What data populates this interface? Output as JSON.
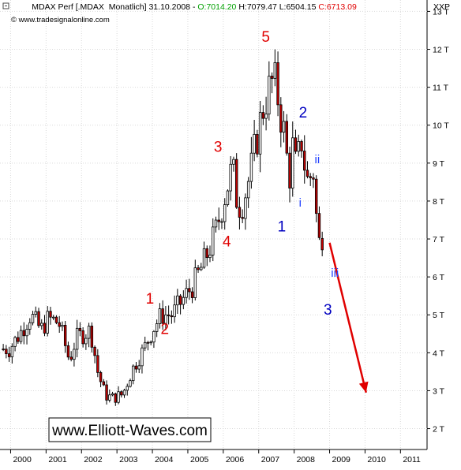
{
  "header": {
    "symbol_text": "MDAX Perf [.MDAX  Monatlich] 31.10.2008 - ",
    "open_text": "O:7014.20",
    "high_text": " H:7079.47",
    "low_text": " L:6504.15",
    "close_text": " C:6713.09",
    "open_color": "#00a000",
    "close_color": "#e00000",
    "source_text": "www.tradesignalonline.com",
    "currency_label": "XXP"
  },
  "watermark": "www.Elliott-Waves.com",
  "chart_data": {
    "type": "candlestick",
    "title": "MDAX Perf [.MDAX  Monatlich] 31.10.2008",
    "frequency": "monthly",
    "y_unit_label": "T",
    "yticks": [
      2,
      3,
      4,
      5,
      6,
      7,
      8,
      9,
      10,
      11,
      12,
      13
    ],
    "ytick_labels": [
      "2 T",
      "3 T",
      "4 T",
      "5 T",
      "6 T",
      "7 T",
      "8 T",
      "9 T",
      "10 T",
      "11 T",
      "12 T",
      "13 T"
    ],
    "ylim": [
      1.45,
      13.3
    ],
    "xtick_labels": [
      "2000",
      "2001",
      "2002",
      "2003",
      "2004",
      "2005",
      "2006",
      "2007",
      "2008",
      "2009",
      "2010",
      "2011"
    ],
    "xlim": [
      1999.7,
      2011.75
    ],
    "grid": true,
    "last_bar": {
      "date": "31.10.2008",
      "open": 7014.2,
      "high": 7079.47,
      "low": 6504.15,
      "close": 6713.09
    },
    "anchors": [
      [
        2000.0,
        4.1
      ],
      [
        2000.3,
        4.5
      ],
      [
        2000.6,
        5.0
      ],
      [
        2000.9,
        4.6
      ],
      [
        2001.1,
        4.9
      ],
      [
        2001.4,
        4.8
      ],
      [
        2001.7,
        3.8
      ],
      [
        2001.9,
        4.4
      ],
      [
        2002.3,
        4.6
      ],
      [
        2002.5,
        3.5
      ],
      [
        2002.7,
        2.9
      ],
      [
        2002.9,
        2.8
      ],
      [
        2003.2,
        2.9
      ],
      [
        2003.5,
        3.6
      ],
      [
        2003.8,
        4.1
      ],
      [
        2004.1,
        4.7
      ],
      [
        2004.3,
        5.0
      ],
      [
        2004.6,
        5.0
      ],
      [
        2004.9,
        5.4
      ],
      [
        2005.2,
        5.8
      ],
      [
        2005.5,
        6.4
      ],
      [
        2005.8,
        7.1
      ],
      [
        2006.1,
        8.2
      ],
      [
        2006.3,
        8.9
      ],
      [
        2006.45,
        7.9
      ],
      [
        2006.6,
        8.0
      ],
      [
        2006.8,
        8.7
      ],
      [
        2007.0,
        9.7
      ],
      [
        2007.2,
        10.6
      ],
      [
        2007.45,
        11.2
      ],
      [
        2007.6,
        10.7
      ],
      [
        2007.75,
        9.8
      ],
      [
        2007.9,
        8.6
      ],
      [
        2008.0,
        9.4
      ],
      [
        2008.1,
        8.8
      ],
      [
        2008.25,
        9.6
      ],
      [
        2008.4,
        8.5
      ],
      [
        2008.6,
        8.8
      ],
      [
        2008.7,
        7.0
      ],
      [
        2008.83,
        6.71
      ]
    ],
    "annotations": [
      {
        "text": "1",
        "x": 2003.93,
        "y": 5.3,
        "color": "#e00000"
      },
      {
        "text": "2",
        "x": 2004.35,
        "y": 4.5,
        "color": "#e00000"
      },
      {
        "text": "3",
        "x": 2005.85,
        "y": 9.3,
        "color": "#e00000"
      },
      {
        "text": "4",
        "x": 2006.1,
        "y": 6.8,
        "color": "#e00000"
      },
      {
        "text": "5",
        "x": 2007.2,
        "y": 12.2,
        "color": "#e00000"
      },
      {
        "text": "1",
        "x": 2007.65,
        "y": 7.2,
        "color": "#0000c0"
      },
      {
        "text": "2",
        "x": 2008.25,
        "y": 10.2,
        "color": "#0000c0"
      },
      {
        "text": "3",
        "x": 2008.95,
        "y": 5.0,
        "color": "#0000c0"
      },
      {
        "text": "i",
        "x": 2008.17,
        "y": 7.85,
        "color": "#2040ff"
      },
      {
        "text": "ii",
        "x": 2008.65,
        "y": 9.0,
        "color": "#2040ff"
      },
      {
        "text": "iii",
        "x": 2009.15,
        "y": 6.0,
        "color": "#2040ff"
      }
    ],
    "projection": {
      "from": [
        2009.0,
        6.9
      ],
      "to": [
        2010.03,
        2.95
      ],
      "color": "#e00000"
    }
  }
}
